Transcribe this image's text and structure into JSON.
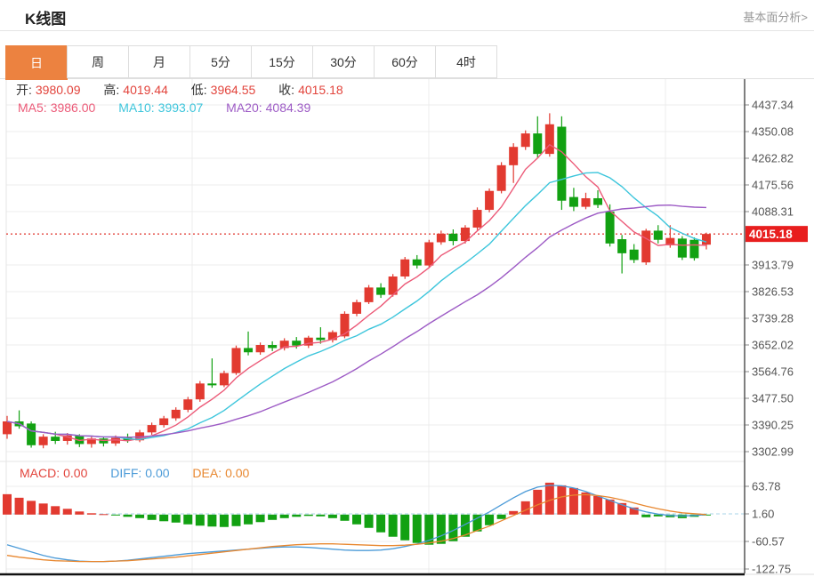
{
  "header": {
    "title": "K线图",
    "analysis_link": "基本面分析>"
  },
  "tabs": {
    "selected_index": 0,
    "items": [
      "日",
      "周",
      "月",
      "5分",
      "15分",
      "30分",
      "60分",
      "4时"
    ]
  },
  "indicators": {
    "ohlc": {
      "open_label": "开:",
      "open": "3980.09",
      "high_label": "高:",
      "high": "4019.44",
      "low_label": "低:",
      "low": "3964.55",
      "close_label": "收:",
      "close": "4015.18"
    },
    "ma": {
      "ma5_label": "MA5:",
      "ma5": "3986.00",
      "ma10_label": "MA10:",
      "ma10": "3993.07",
      "ma20_label": "MA20:",
      "ma20": "4084.39"
    },
    "macd": {
      "macd_label": "MACD:",
      "macd": "0.00",
      "diff_label": "DIFF:",
      "diff": "0.00",
      "dea_label": "DEA:",
      "dea": "0.00"
    }
  },
  "colors": {
    "up": "#E23A30",
    "down": "#12A112",
    "ma5": "#EC5A78",
    "ma10": "#3EC6DC",
    "ma20": "#9D5BC5",
    "diff": "#4C9BD8",
    "dea": "#E8872F",
    "tab_active": "#EC8240",
    "price_line": "#E2443C",
    "price_box": "#E81E1E",
    "grid": "#ECECEC",
    "axis": "#555555",
    "zero_dash": "#A8D4E8",
    "value_red": "#E2443C"
  },
  "chart_data": {
    "type": "candlestick",
    "panels": [
      "price",
      "macd"
    ],
    "price_axis": {
      "ticks": [
        "4437.34",
        "4350.08",
        "4262.82",
        "4175.56",
        "4088.31",
        "3913.79",
        "3826.53",
        "3739.28",
        "3652.02",
        "3564.76",
        "3477.50",
        "3390.25",
        "3302.99"
      ],
      "current_price": 4015.18,
      "current_price_label": "4015.18"
    },
    "candles": {
      "ohlc": [
        [
          3360,
          3420,
          3345,
          3402
        ],
        [
          3402,
          3438,
          3378,
          3386
        ],
        [
          3395,
          3402,
          3316,
          3324
        ],
        [
          3324,
          3360,
          3314,
          3352
        ],
        [
          3352,
          3368,
          3328,
          3338
        ],
        [
          3338,
          3364,
          3326,
          3356
        ],
        [
          3356,
          3360,
          3318,
          3328
        ],
        [
          3328,
          3354,
          3316,
          3346
        ],
        [
          3346,
          3352,
          3320,
          3330
        ],
        [
          3330,
          3356,
          3322,
          3348
        ],
        [
          3348,
          3362,
          3332,
          3340
        ],
        [
          3340,
          3374,
          3334,
          3366
        ],
        [
          3366,
          3398,
          3358,
          3390
        ],
        [
          3390,
          3420,
          3382,
          3412
        ],
        [
          3412,
          3448,
          3404,
          3440
        ],
        [
          3440,
          3482,
          3432,
          3474
        ],
        [
          3474,
          3534,
          3466,
          3526
        ],
        [
          3526,
          3608,
          3512,
          3520
        ],
        [
          3520,
          3568,
          3514,
          3560
        ],
        [
          3560,
          3650,
          3554,
          3642
        ],
        [
          3642,
          3696,
          3618,
          3628
        ],
        [
          3628,
          3660,
          3620,
          3652
        ],
        [
          3652,
          3664,
          3632,
          3642
        ],
        [
          3642,
          3674,
          3634,
          3666
        ],
        [
          3666,
          3678,
          3640,
          3650
        ],
        [
          3650,
          3682,
          3642,
          3676
        ],
        [
          3676,
          3710,
          3656,
          3668
        ],
        [
          3668,
          3700,
          3660,
          3694
        ],
        [
          3680,
          3762,
          3674,
          3754
        ],
        [
          3754,
          3800,
          3746,
          3792
        ],
        [
          3792,
          3848,
          3786,
          3840
        ],
        [
          3840,
          3854,
          3806,
          3816
        ],
        [
          3816,
          3884,
          3810,
          3876
        ],
        [
          3876,
          3940,
          3868,
          3932
        ],
        [
          3932,
          3946,
          3902,
          3912
        ],
        [
          3912,
          3996,
          3906,
          3988
        ],
        [
          3988,
          4026,
          3980,
          4016
        ],
        [
          4016,
          4030,
          3978,
          3992
        ],
        [
          3992,
          4044,
          3984,
          4036
        ],
        [
          4036,
          4102,
          4028,
          4094
        ],
        [
          4094,
          4164,
          4086,
          4156
        ],
        [
          4156,
          4250,
          4148,
          4240
        ],
        [
          4240,
          4312,
          4182,
          4300
        ],
        [
          4300,
          4354,
          4290,
          4344
        ],
        [
          4344,
          4400,
          4264,
          4277
        ],
        [
          4277,
          4410,
          4268,
          4374
        ],
        [
          4366,
          4400,
          4094,
          4124
        ],
        [
          4136,
          4166,
          4090,
          4104
        ],
        [
          4104,
          4150,
          4096,
          4132
        ],
        [
          4132,
          4158,
          4100,
          4110
        ],
        [
          4088,
          4112,
          3974,
          3984
        ],
        [
          3998,
          4012,
          3886,
          3952
        ],
        [
          3964,
          3982,
          3920,
          3930
        ],
        [
          3922,
          4032,
          3914,
          4026
        ],
        [
          4026,
          4044,
          3984,
          3996
        ],
        [
          3978,
          4044,
          3970,
          4002
        ],
        [
          4000,
          4008,
          3930,
          3938
        ],
        [
          3996,
          4004,
          3928,
          3936
        ],
        [
          3980.09,
          4019.44,
          3964.55,
          4015.18
        ]
      ]
    },
    "ma_periods": [
      5,
      10,
      20
    ],
    "macd": {
      "axis_ticks": [
        "63.78",
        "1.60",
        "-60.57",
        "-122.75"
      ],
      "histogram": [
        46,
        38,
        31,
        25,
        19,
        13,
        7,
        3,
        1,
        -2,
        -5,
        -8,
        -12,
        -15,
        -18,
        -22,
        -25,
        -27,
        -28,
        -26,
        -22,
        -17,
        -12,
        -8,
        -5,
        -3,
        -4,
        -8,
        -14,
        -22,
        -30,
        -40,
        -50,
        -58,
        -64,
        -68,
        -66,
        -60,
        -50,
        -38,
        -24,
        -10,
        8,
        30,
        56,
        72,
        66,
        60,
        50,
        42,
        34,
        26,
        16,
        -6,
        -4,
        -6,
        -8,
        -5,
        -1
      ],
      "diff": [
        -68,
        -76,
        -84,
        -92,
        -98,
        -102,
        -105,
        -106,
        -106,
        -105,
        -103,
        -100,
        -97,
        -94,
        -91,
        -88,
        -86,
        -84,
        -82,
        -80,
        -78,
        -76,
        -74,
        -73,
        -73,
        -74,
        -76,
        -78,
        -80,
        -81,
        -81,
        -80,
        -77,
        -72,
        -66,
        -58,
        -48,
        -36,
        -22,
        -8,
        6,
        22,
        38,
        52,
        62,
        66,
        65,
        60,
        52,
        42,
        32,
        22,
        13,
        6,
        1,
        -2,
        -3,
        -2,
        0
      ],
      "dea": [
        -92,
        -96,
        -99,
        -102,
        -104,
        -105,
        -106,
        -106,
        -106,
        -105,
        -104,
        -102,
        -100,
        -98,
        -96,
        -93,
        -90,
        -87,
        -84,
        -81,
        -78,
        -75,
        -72,
        -70,
        -68,
        -67,
        -66,
        -66,
        -67,
        -68,
        -69,
        -70,
        -70,
        -69,
        -67,
        -64,
        -60,
        -54,
        -46,
        -36,
        -26,
        -14,
        -2,
        10,
        22,
        32,
        40,
        44,
        45,
        43,
        39,
        33,
        26,
        19,
        13,
        8,
        4,
        2,
        0
      ]
    }
  }
}
